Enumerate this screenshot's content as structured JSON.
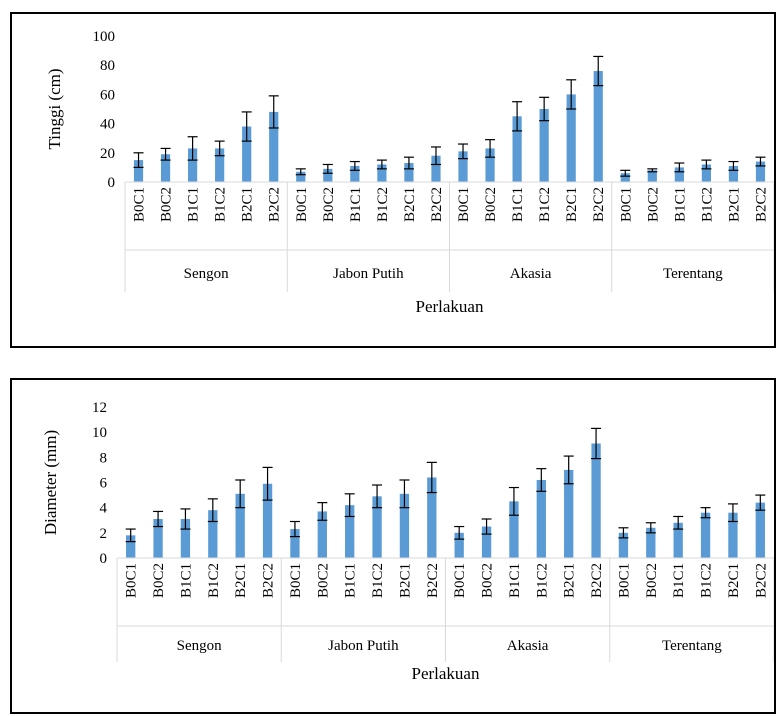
{
  "colors": {
    "bar": "#5b9bd5",
    "axis": "#d9d9d9",
    "text": "#000000",
    "error_bar": "#000000"
  },
  "chart_data": [
    {
      "type": "bar",
      "title": "",
      "xlabel": "Perlakuan",
      "ylabel": "Tinggi (cm)",
      "ylim": [
        0,
        100
      ],
      "yticks": [
        0,
        20,
        40,
        60,
        80,
        100
      ],
      "grid": false,
      "groups": [
        "Sengon",
        "Jabon Putih",
        "Akasia",
        "Terentang"
      ],
      "categories": [
        "B0C1",
        "B0C2",
        "B1C1",
        "B1C2",
        "B2C1",
        "B2C2"
      ],
      "values": [
        [
          15,
          19,
          23,
          23,
          38,
          48
        ],
        [
          7,
          9,
          11,
          12,
          13,
          18
        ],
        [
          21,
          23,
          45,
          50,
          60,
          76
        ],
        [
          6,
          8,
          10,
          12,
          11,
          14
        ]
      ],
      "error": [
        [
          5,
          4,
          8,
          5,
          10,
          11
        ],
        [
          2,
          3,
          3,
          3,
          4,
          6
        ],
        [
          5,
          6,
          10,
          8,
          10,
          10
        ],
        [
          2,
          1,
          3,
          3,
          3,
          3
        ]
      ]
    },
    {
      "type": "bar",
      "title": "",
      "xlabel": "Perlakuan",
      "ylabel": "Diameter (mm)",
      "ylim": [
        0,
        12
      ],
      "yticks": [
        0,
        2,
        4,
        6,
        8,
        10,
        12
      ],
      "grid": false,
      "groups": [
        "Sengon",
        "Jabon Putih",
        "Akasia",
        "Terentang"
      ],
      "categories": [
        "B0C1",
        "B0C2",
        "B1C1",
        "B1C2",
        "B2C1",
        "B2C2"
      ],
      "values": [
        [
          1.8,
          3.1,
          3.1,
          3.8,
          5.1,
          5.9
        ],
        [
          2.3,
          3.7,
          4.2,
          4.9,
          5.1,
          6.4
        ],
        [
          2.0,
          2.5,
          4.5,
          6.2,
          7.0,
          9.1
        ],
        [
          2.0,
          2.4,
          2.8,
          3.6,
          3.6,
          4.4
        ]
      ],
      "error": [
        [
          0.5,
          0.6,
          0.8,
          0.9,
          1.1,
          1.3
        ],
        [
          0.6,
          0.7,
          0.9,
          0.9,
          1.1,
          1.2
        ],
        [
          0.5,
          0.6,
          1.1,
          0.9,
          1.1,
          1.2
        ],
        [
          0.4,
          0.4,
          0.5,
          0.4,
          0.7,
          0.6
        ]
      ]
    }
  ]
}
